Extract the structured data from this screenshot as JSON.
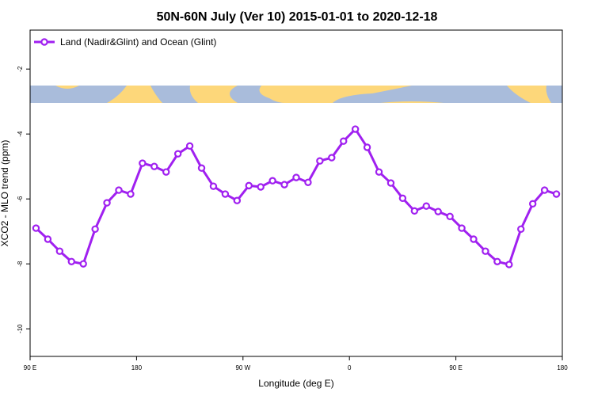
{
  "chart_data": {
    "type": "line",
    "title": "50N-60N July (Ver 10)   2015-01-01 to 2020-12-18",
    "x_label": "Longitude (deg E)",
    "y_label": "XCO2 - MLO trend (ppm)",
    "x": [
      95,
      105,
      115,
      125,
      135,
      145,
      155,
      165,
      175,
      185,
      195,
      205,
      215,
      225,
      235,
      245,
      255,
      265,
      275,
      285,
      295,
      305,
      315,
      325,
      335,
      345,
      355,
      365,
      375,
      385,
      395,
      405,
      415,
      425,
      435,
      445,
      455,
      465,
      475,
      485,
      495,
      505,
      515,
      525,
      535
    ],
    "series": [
      {
        "name": "Land (Nadir&Glint) and Ocean (Glint)",
        "color": "#a020f0",
        "values": [
          -6.9,
          -7.24,
          -7.61,
          -7.93,
          -8.0,
          -6.93,
          -6.12,
          -5.73,
          -5.85,
          -4.9,
          -5.0,
          -5.17,
          -4.61,
          -4.37,
          -5.05,
          -5.61,
          -5.85,
          -6.05,
          -5.59,
          -5.63,
          -5.44,
          -5.56,
          -5.34,
          -5.49,
          -4.83,
          -4.73,
          -4.22,
          -3.85,
          -4.41,
          -5.17,
          -5.51,
          -5.98,
          -6.37,
          -6.22,
          -6.39,
          -6.54,
          -6.9,
          -7.24,
          -7.61,
          -7.93,
          -8.02,
          -6.93,
          -6.15,
          -5.73,
          -5.85
        ]
      }
    ],
    "xlim": [
      90,
      540
    ],
    "xticks": [
      {
        "value": 90,
        "label": "90 E"
      },
      180,
      {
        "value": 270,
        "label": "90 W"
      },
      {
        "value": 360,
        "label": "0"
      },
      {
        "value": 450,
        "label": "90 E"
      },
      {
        "value": 540,
        "label": "180"
      }
    ],
    "ylim": [
      -10.85,
      -0.8
    ],
    "yticks": [
      -10,
      -8,
      -6,
      -4,
      -2
    ],
    "legend": "top-left"
  }
}
